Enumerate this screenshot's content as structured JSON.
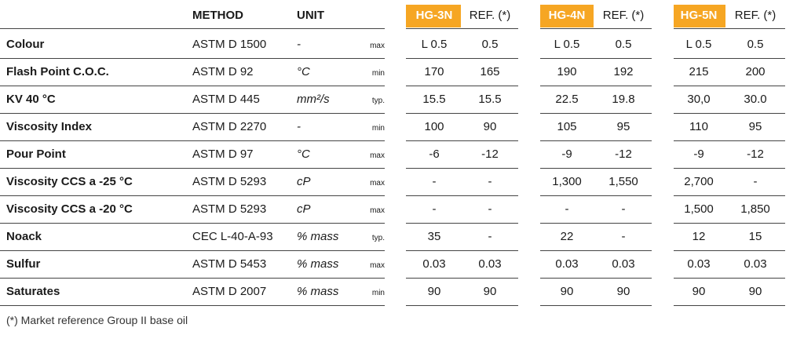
{
  "header": {
    "method": "METHOD",
    "unit": "UNIT",
    "products": [
      {
        "name": "HG-3N",
        "ref": "REF. (*)"
      },
      {
        "name": "HG-4N",
        "ref": "REF. (*)"
      },
      {
        "name": "HG-5N",
        "ref": "REF. (*)"
      }
    ]
  },
  "rows": [
    {
      "property": "Colour",
      "method": "ASTM D 1500",
      "unit": "-",
      "limit": "max",
      "values": [
        "L 0.5",
        "0.5",
        "L 0.5",
        "0.5",
        "L 0.5",
        "0.5"
      ]
    },
    {
      "property": "Flash Point C.O.C.",
      "method": "ASTM D 92",
      "unit": "°C",
      "limit": "min",
      "values": [
        "170",
        "165",
        "190",
        "192",
        "215",
        "200"
      ]
    },
    {
      "property": "KV 40 °C",
      "method": "ASTM D 445",
      "unit": "mm²/s",
      "limit": "typ.",
      "values": [
        "15.5",
        "15.5",
        "22.5",
        "19.8",
        "30,0",
        "30.0"
      ]
    },
    {
      "property": "Viscosity Index",
      "method": "ASTM D 2270",
      "unit": "-",
      "limit": "min",
      "values": [
        "100",
        "90",
        "105",
        "95",
        "110",
        "95"
      ]
    },
    {
      "property": "Pour Point",
      "method": "ASTM D 97",
      "unit": "°C",
      "limit": "max",
      "values": [
        "-6",
        "-12",
        "-9",
        "-12",
        "-9",
        "-12"
      ]
    },
    {
      "property": "Viscosity CCS a -25 °C",
      "method": "ASTM D 5293",
      "unit": "cP",
      "limit": "max",
      "values": [
        "-",
        "-",
        "1,300",
        "1,550",
        "2,700",
        "-"
      ]
    },
    {
      "property": "Viscosity CCS a -20 °C",
      "method": "ASTM D 5293",
      "unit": "cP",
      "limit": "max",
      "values": [
        "-",
        "-",
        "-",
        "-",
        "1,500",
        "1,850"
      ]
    },
    {
      "property": "Noack",
      "method": "CEC L-40-A-93",
      "unit": "% mass",
      "limit": "typ.",
      "values": [
        "35",
        "-",
        "22",
        "-",
        "12",
        "15"
      ]
    },
    {
      "property": "Sulfur",
      "method": "ASTM D 5453",
      "unit": "% mass",
      "limit": "max",
      "values": [
        "0.03",
        "0.03",
        "0.03",
        "0.03",
        "0.03",
        "0.03"
      ]
    },
    {
      "property": "Saturates",
      "method": "ASTM D 2007",
      "unit": "% mass",
      "limit": "min",
      "values": [
        "90",
        "90",
        "90",
        "90",
        "90",
        "90"
      ]
    }
  ],
  "footnote": "(*) Market reference Group II base oil"
}
